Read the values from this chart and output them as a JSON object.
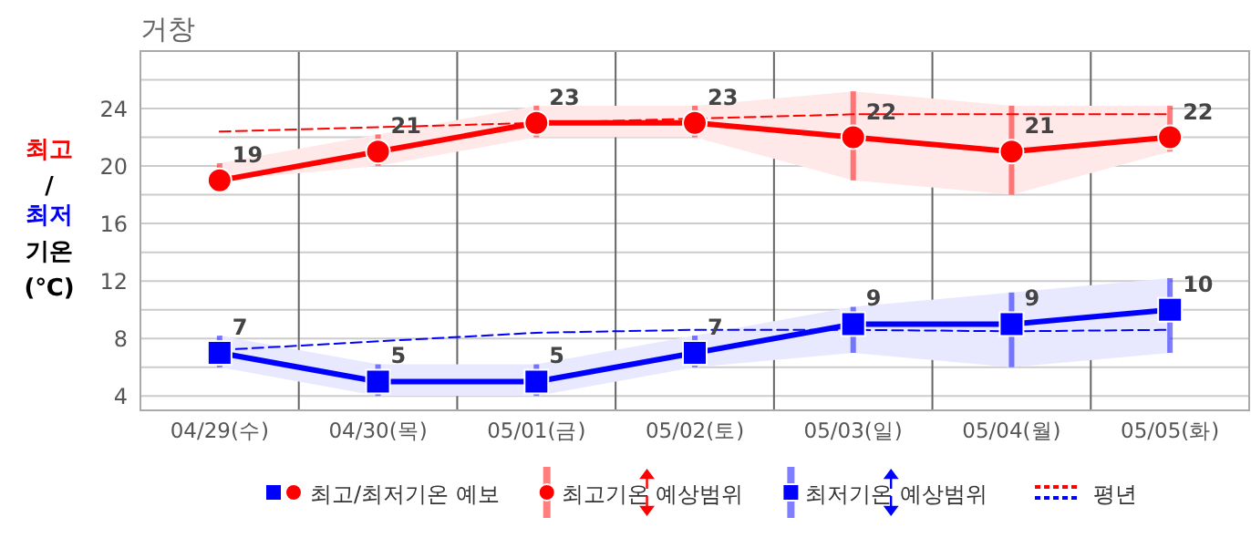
{
  "chart_data": {
    "type": "line",
    "title": "거창",
    "ylabel": "최고/최저 기온 (℃)",
    "categories": [
      "04/29(수)",
      "04/30(목)",
      "05/01(금)",
      "05/02(토)",
      "05/03(일)",
      "05/04(월)",
      "05/05(화)"
    ],
    "ylim": [
      3,
      28
    ],
    "yticks": [
      4,
      {
        "value": 6,
        "label": null
      },
      8,
      {
        "value": 10,
        "label": null
      },
      12,
      {
        "value": 14,
        "label": null
      },
      16,
      {
        "value": 18,
        "label": null
      },
      20,
      {
        "value": 22,
        "label": null
      },
      24,
      {
        "value": 26,
        "label": null
      }
    ],
    "grid": true,
    "legend": "bottom",
    "series": [
      {
        "name": "최고/최저기온 예보",
        "color": "#ff0000",
        "marker": "circle",
        "values": [
          19,
          21,
          23,
          23,
          22,
          21,
          22
        ],
        "value_labels": [
          "19",
          "21",
          "23",
          "23",
          "22",
          "21",
          "22"
        ],
        "errors": [
          [
            19,
            20.2
          ],
          [
            20,
            22.2
          ],
          [
            22,
            24.2
          ],
          [
            22,
            24.2
          ],
          [
            19,
            25.2
          ],
          [
            18,
            24.2
          ],
          [
            21,
            24.2
          ]
        ],
        "lower": [
          19,
          20,
          22,
          22,
          19,
          18,
          21
        ],
        "upper": [
          20.2,
          22.2,
          24.2,
          24.2,
          25.2,
          24.2,
          24.2
        ]
      },
      {
        "color": "#0000ff",
        "marker": "square",
        "values": [
          7,
          5,
          5,
          7,
          9,
          9,
          10
        ],
        "value_labels": [
          "7",
          "5",
          "5",
          "7",
          "9",
          "9",
          "10"
        ],
        "errors": [
          [
            6,
            8.2
          ],
          [
            4,
            6.2
          ],
          [
            4,
            6.2
          ],
          [
            6,
            8.2
          ],
          [
            7,
            10.2
          ],
          [
            6,
            11.2
          ],
          [
            7,
            12.2
          ]
        ],
        "lower": [
          6,
          4,
          4,
          6,
          7,
          6,
          7
        ],
        "upper": [
          8.2,
          6.2,
          6.2,
          8.2,
          10.2,
          11.2,
          12.2
        ]
      },
      {
        "name": "평년",
        "color": "#ff0000",
        "marker": "none",
        "line_style": "dashed",
        "values": [
          22.4,
          22.7,
          23.0,
          23.3,
          23.6,
          23.6,
          23.6
        ]
      },
      {
        "color": "#0000ff",
        "marker": "none",
        "line_style": "dashed",
        "values": [
          7.2,
          7.8,
          8.4,
          8.6,
          8.6,
          8.5,
          8.6
        ]
      }
    ],
    "annotations": [
      "최고기온 예상범위",
      "최저기온 예상범위"
    ]
  }
}
